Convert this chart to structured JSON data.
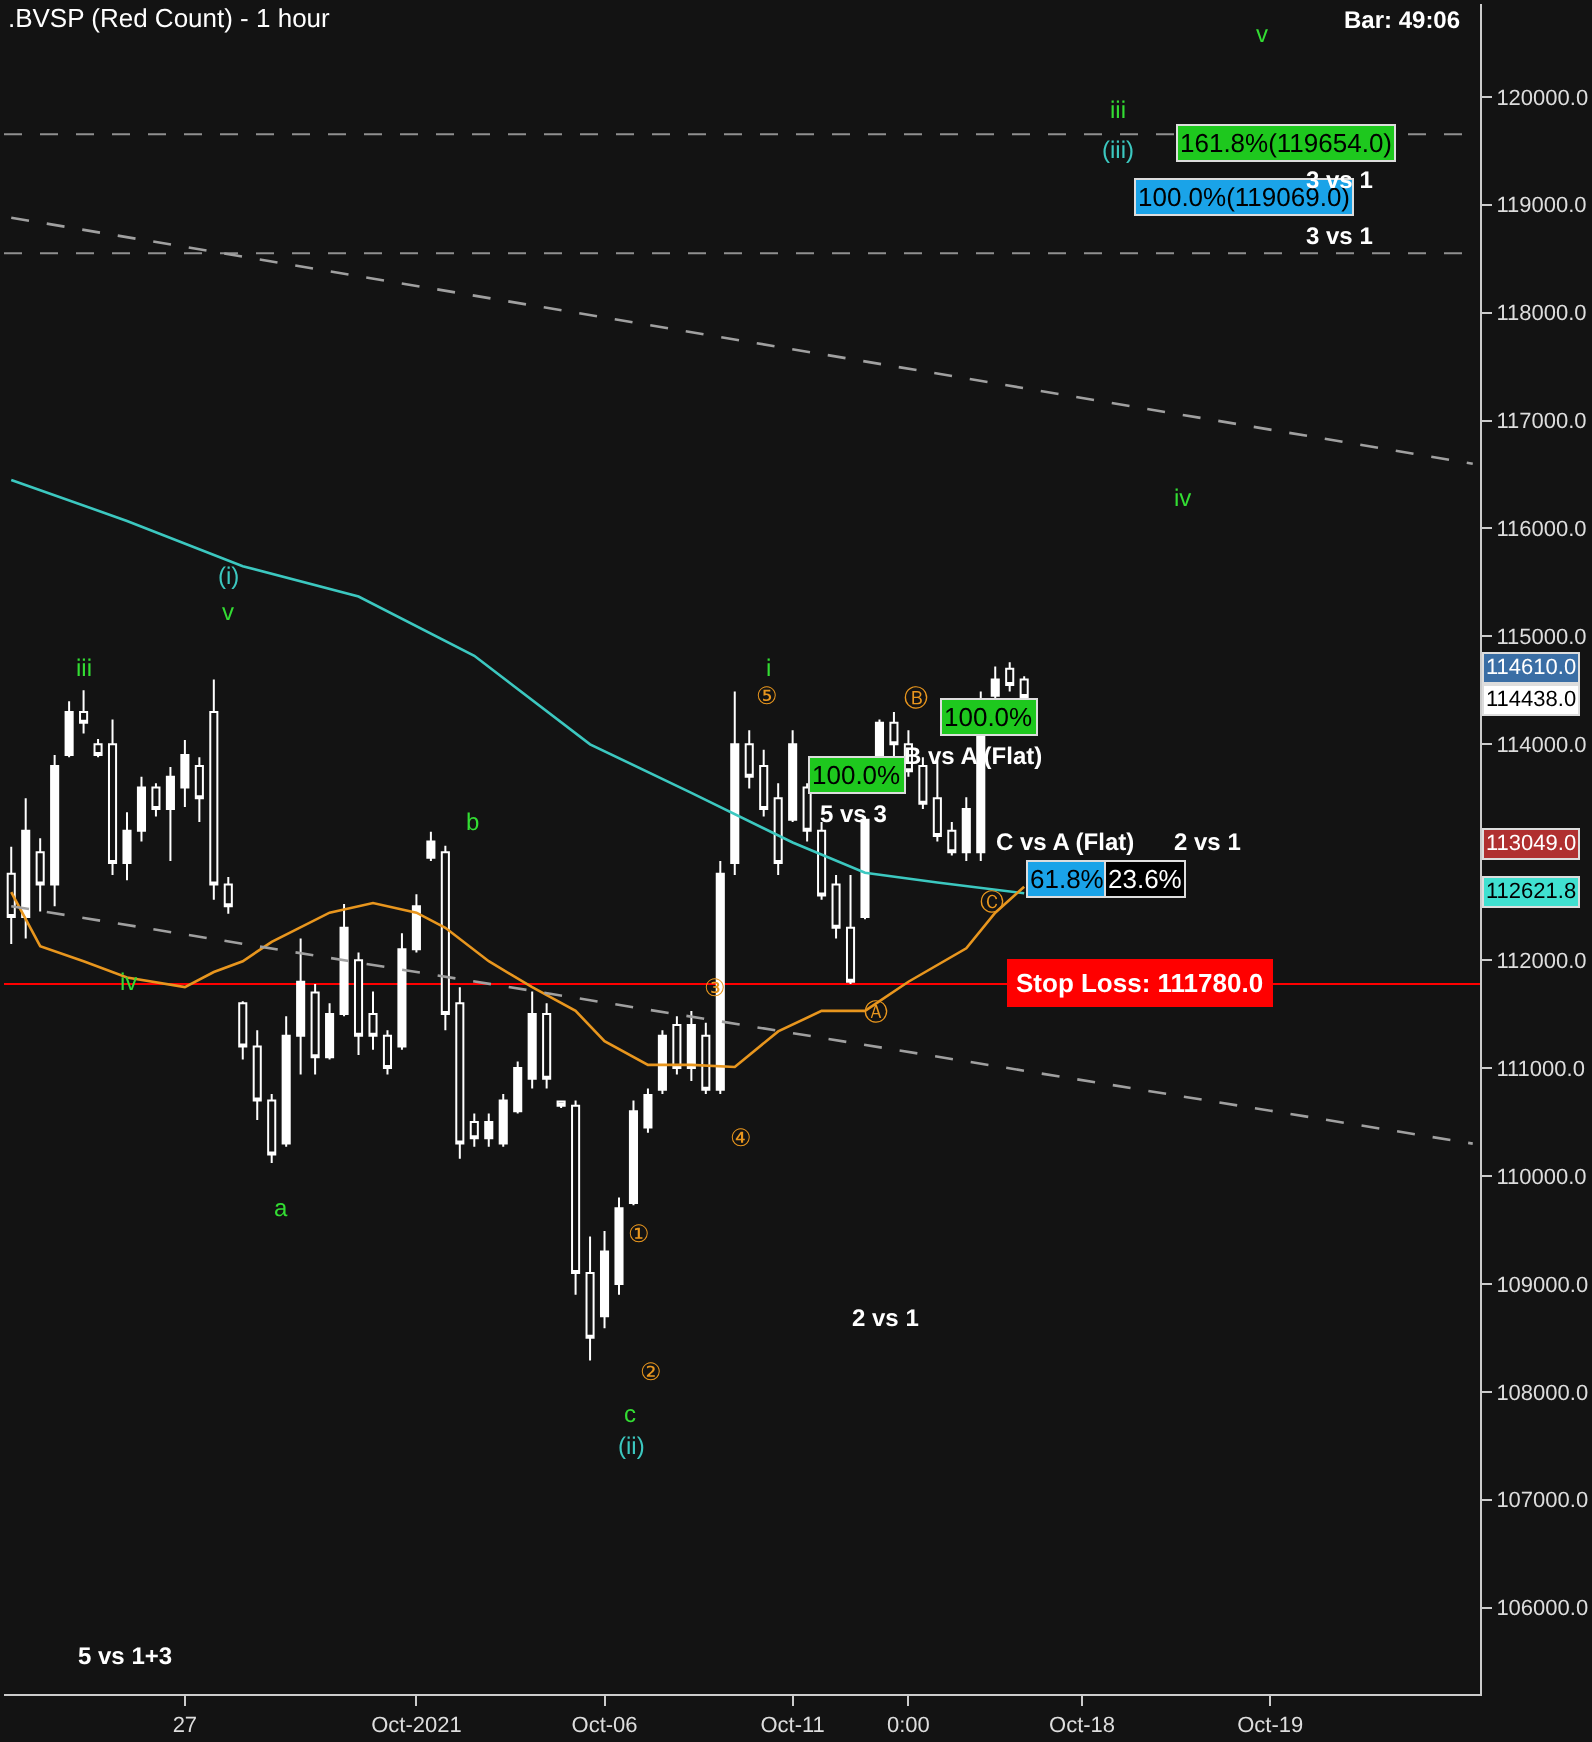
{
  "chart_data": {
    "type": "candlestick",
    "title": ".BVSP (Red Count) - 1 hour",
    "color": "#ffffff",
    "categories": [
      null,
      null,
      null,
      null,
      null,
      null,
      null,
      null,
      null,
      null,
      null,
      null,
      "27",
      null,
      null,
      null,
      null,
      null,
      null,
      null,
      null,
      null,
      null,
      null,
      null,
      null,
      null,
      null,
      "Oct-2021",
      null,
      null,
      null,
      null,
      null,
      null,
      null,
      null,
      null,
      null,
      null,
      null,
      "Oct-06",
      null,
      null,
      null,
      null,
      null,
      null,
      null,
      null,
      null,
      null,
      null,
      null,
      "Oct-11",
      null,
      null,
      null,
      null,
      null,
      null,
      null,
      "0:00",
      null,
      null,
      null,
      null,
      null,
      null,
      null,
      null,
      null,
      null,
      null,
      "Oct-18",
      null,
      null,
      null,
      null,
      null,
      null,
      null,
      null,
      null,
      null,
      null,
      null,
      "Oct-19",
      null,
      null,
      null,
      null,
      null,
      null,
      null,
      null,
      null,
      null,
      null,
      null,
      null,
      null
    ],
    "ohlc": [
      [
        112800,
        113050,
        112150,
        112400
      ],
      [
        112400,
        113500,
        112200,
        113200
      ],
      [
        113000,
        113130,
        112450,
        112700
      ],
      [
        112700,
        113900,
        112500,
        113800
      ],
      [
        113900,
        114400,
        113880,
        114300
      ],
      [
        114300,
        114500,
        114100,
        114200
      ],
      [
        114000,
        114050,
        113880,
        113900
      ],
      [
        114000,
        114230,
        112790,
        112900
      ],
      [
        112900,
        113370,
        112740,
        113200
      ],
      [
        113200,
        113700,
        113100,
        113600
      ],
      [
        113600,
        113640,
        113330,
        113400
      ],
      [
        113400,
        113790,
        112920,
        113700
      ],
      [
        113600,
        114040,
        113420,
        113900
      ],
      [
        113800,
        113880,
        113280,
        113500
      ],
      [
        114300,
        114600,
        112560,
        112700
      ],
      [
        112700,
        112770,
        112430,
        112500
      ],
      [
        111600,
        111620,
        111080,
        111200
      ],
      [
        111200,
        111350,
        110520,
        110700
      ],
      [
        110700,
        110760,
        110120,
        110200
      ],
      [
        110300,
        111480,
        110270,
        111300
      ],
      [
        111300,
        112200,
        110940,
        111800
      ],
      [
        111700,
        111780,
        110940,
        111100
      ],
      [
        111100,
        111600,
        111080,
        111500
      ],
      [
        111500,
        112520,
        111480,
        112300
      ],
      [
        112000,
        112070,
        111120,
        111300
      ],
      [
        111500,
        111710,
        111170,
        111300
      ],
      [
        111300,
        111350,
        110940,
        111000
      ],
      [
        111200,
        112250,
        111170,
        112100
      ],
      [
        112100,
        112610,
        112070,
        112500
      ],
      [
        112950,
        113190,
        112920,
        113100
      ],
      [
        113000,
        113060,
        111350,
        111500
      ],
      [
        111600,
        111750,
        110160,
        110300
      ],
      [
        110500,
        110580,
        110270,
        110350
      ],
      [
        110350,
        110580,
        110270,
        110500
      ],
      [
        110300,
        110760,
        110270,
        110700
      ],
      [
        110600,
        111060,
        110580,
        111000
      ],
      [
        110900,
        111710,
        110810,
        111500
      ],
      [
        111500,
        111600,
        110810,
        110900
      ],
      [
        110690,
        110700,
        110630,
        110650
      ],
      [
        110650,
        110700,
        108900,
        109100
      ],
      [
        109100,
        109440,
        108290,
        108500
      ],
      [
        108700,
        109490,
        108590,
        109300
      ],
      [
        109000,
        109800,
        108900,
        109700
      ],
      [
        109750,
        110700,
        109730,
        110600
      ],
      [
        110450,
        110810,
        110400,
        110750
      ],
      [
        110800,
        111350,
        110760,
        111300
      ],
      [
        111400,
        111480,
        110940,
        111000
      ],
      [
        111000,
        111530,
        110880,
        111400
      ],
      [
        111300,
        111420,
        110760,
        110800
      ],
      [
        110800,
        112920,
        110760,
        112800
      ],
      [
        112900,
        114490,
        112790,
        114000
      ],
      [
        114000,
        114130,
        113590,
        113700
      ],
      [
        113800,
        113950,
        113330,
        113400
      ],
      [
        113500,
        113640,
        112790,
        112900
      ],
      [
        113300,
        114130,
        113280,
        114000
      ],
      [
        113600,
        113640,
        113100,
        113200
      ],
      [
        113200,
        113280,
        112560,
        112600
      ],
      [
        112700,
        112790,
        112200,
        112300
      ],
      [
        112300,
        112790,
        111780,
        111800
      ],
      [
        112400,
        113330,
        112380,
        113300
      ],
      [
        113900,
        114230,
        113880,
        114200
      ],
      [
        114200,
        114300,
        113880,
        114000
      ],
      [
        114000,
        114130,
        113700,
        113750
      ],
      [
        113800,
        113880,
        113400,
        113450
      ],
      [
        113500,
        113880,
        113100,
        113150
      ],
      [
        113200,
        113280,
        112970,
        113000
      ],
      [
        113000,
        113510,
        112920,
        113400
      ],
      [
        113000,
        114490,
        112920,
        114400
      ],
      [
        114450,
        114720,
        114420,
        114600
      ],
      [
        114700,
        114760,
        114490,
        114550
      ],
      [
        114600,
        114630,
        114438,
        114438
      ],
      null,
      null,
      null,
      null,
      null,
      null,
      null,
      null,
      null,
      null,
      null,
      null,
      null,
      null,
      null,
      null,
      null,
      null,
      null,
      null,
      null,
      null,
      null,
      null,
      null,
      null,
      null,
      null,
      null,
      null,
      null
    ],
    "series": [
      {
        "type": "line",
        "color": "#3cc8c0",
        "values": [
          116450,
          null,
          null,
          null,
          null,
          null,
          null,
          null,
          116070,
          null,
          null,
          null,
          null,
          null,
          null,
          null,
          115650,
          null,
          null,
          null,
          null,
          null,
          null,
          null,
          115370,
          null,
          null,
          null,
          null,
          null,
          null,
          null,
          114820,
          null,
          null,
          null,
          null,
          null,
          null,
          null,
          114000,
          null,
          null,
          null,
          null,
          null,
          null,
          113550,
          null,
          null,
          null,
          null,
          null,
          null,
          113090,
          null,
          null,
          null,
          null,
          112810,
          null,
          null,
          null,
          null,
          112720,
          null,
          null,
          null,
          null,
          null,
          112620,
          null,
          null,
          null,
          null,
          null,
          null,
          null,
          null,
          null,
          null,
          null,
          null,
          null,
          null,
          null,
          null,
          null,
          null,
          null,
          null,
          null,
          null,
          null,
          null,
          null,
          null,
          null,
          null,
          null,
          null,
          null
        ]
      },
      {
        "type": "line",
        "color": "#e8961e",
        "values": [
          112630,
          null,
          112130,
          null,
          null,
          111990,
          null,
          null,
          111840,
          null,
          null,
          null,
          111750,
          null,
          111890,
          null,
          111990,
          null,
          112170,
          null,
          null,
          null,
          112440,
          null,
          null,
          112530,
          null,
          null,
          112440,
          null,
          112300,
          null,
          null,
          111990,
          null,
          null,
          111750,
          null,
          null,
          111530,
          null,
          111250,
          null,
          null,
          111030,
          null,
          null,
          111030,
          null,
          null,
          111010,
          null,
          null,
          111340,
          null,
          null,
          111530,
          null,
          null,
          111530,
          null,
          null,
          111800,
          null,
          null,
          null,
          112110,
          null,
          112440,
          null,
          112680,
          null,
          null,
          null,
          null,
          null,
          null,
          null,
          null,
          null,
          null,
          null,
          null,
          null,
          null,
          null,
          null,
          null,
          null,
          null,
          null,
          null,
          null,
          null,
          null,
          null,
          null,
          null,
          null,
          null,
          null,
          null
        ]
      },
      {
        "type": "line",
        "color": "#a0a0a0",
        "line_style": "dashed",
        "values": [
          118880,
          null,
          null,
          null,
          null,
          null,
          null,
          null,
          null,
          null,
          null,
          null,
          null,
          null,
          null,
          null,
          null,
          null,
          null,
          null,
          null,
          null,
          null,
          null,
          null,
          null,
          null,
          null,
          null,
          null,
          null,
          null,
          null,
          null,
          null,
          null,
          null,
          null,
          null,
          null,
          null,
          null,
          null,
          null,
          null,
          null,
          null,
          null,
          null,
          null,
          null,
          null,
          null,
          null,
          null,
          null,
          null,
          null,
          null,
          null,
          null,
          null,
          null,
          null,
          null,
          null,
          null,
          null,
          null,
          null,
          null,
          null,
          null,
          null,
          null,
          null,
          null,
          null,
          null,
          null,
          null,
          null,
          null,
          null,
          null,
          null,
          null,
          null,
          null,
          null,
          null,
          null,
          null,
          null,
          null,
          null,
          null,
          null,
          null,
          null,
          null,
          116600
        ]
      },
      {
        "type": "line",
        "color": "#a0a0a0",
        "line_style": "dashed",
        "values": [
          112500,
          null,
          null,
          null,
          null,
          null,
          null,
          null,
          null,
          null,
          null,
          null,
          null,
          null,
          null,
          null,
          null,
          null,
          null,
          null,
          null,
          null,
          null,
          null,
          null,
          null,
          null,
          null,
          null,
          null,
          null,
          null,
          null,
          null,
          null,
          null,
          null,
          null,
          null,
          null,
          null,
          null,
          null,
          null,
          null,
          null,
          null,
          null,
          null,
          null,
          null,
          null,
          null,
          null,
          null,
          null,
          null,
          null,
          null,
          null,
          null,
          null,
          null,
          null,
          null,
          null,
          null,
          null,
          null,
          null,
          null,
          null,
          null,
          null,
          null,
          null,
          null,
          null,
          null,
          null,
          null,
          null,
          null,
          null,
          null,
          null,
          null,
          null,
          null,
          null,
          null,
          null,
          null,
          null,
          null,
          null,
          null,
          null,
          null,
          null,
          null,
          110300
        ]
      }
    ],
    "ylim": [
      105200,
      120860
    ],
    "yticks": [
      {
        "value": 106000,
        "label": "106000.0"
      },
      {
        "value": 107000,
        "label": "107000.0"
      },
      {
        "value": 108000,
        "label": "108000.0"
      },
      {
        "value": 109000,
        "label": "109000.0"
      },
      {
        "value": 110000,
        "label": "110000.0"
      },
      {
        "value": 111000,
        "label": "111000.0"
      },
      {
        "value": 112000,
        "label": "112000.0"
      },
      {
        "value": 113000,
        "label": null
      },
      {
        "value": 114000,
        "label": "114000.0"
      },
      {
        "value": 115000,
        "label": "115000.0"
      },
      {
        "value": 116000,
        "label": "116000.0"
      },
      {
        "value": 117000,
        "label": "117000.0"
      },
      {
        "value": 118000,
        "label": "118000.0"
      },
      {
        "value": 119000,
        "label": "119000.0"
      },
      {
        "value": 120000,
        "label": "120000.0"
      }
    ],
    "grid": false,
    "ref_lines": [
      {
        "axis": "y",
        "value": 119654,
        "color": "#909090",
        "line_style": "dashed"
      },
      {
        "axis": "y",
        "value": 118550,
        "color": "#909090",
        "line_style": "dashed"
      },
      {
        "axis": "y",
        "value": 111780,
        "color": "#ff0000",
        "line_style": "solid",
        "label": "Stop Loss: 111780.0"
      }
    ],
    "annotations": [
      "Bar: 49:06",
      "iii",
      "v",
      "(i)",
      "iv",
      "a",
      "b",
      "c",
      "(ii)",
      "i",
      "iii",
      "(iii)",
      "iv",
      "v",
      "⑤",
      "③",
      "④",
      "①",
      "②",
      "Ⓐ",
      "Ⓑ",
      "Ⓒ",
      "161.8%(119654.0)",
      "100.0%(119069.0)",
      "3 vs 1",
      "3 vs 1",
      "100.0%",
      "5 vs 3",
      "100.0%",
      "B vs A (Flat)",
      "C vs A (Flat)",
      "2 vs 1",
      "61.8%",
      "23.6%",
      "2 vs 1",
      "5 vs 1+3",
      "114610.0",
      "114438.0",
      "113049.0",
      "112621.8"
    ]
  }
}
